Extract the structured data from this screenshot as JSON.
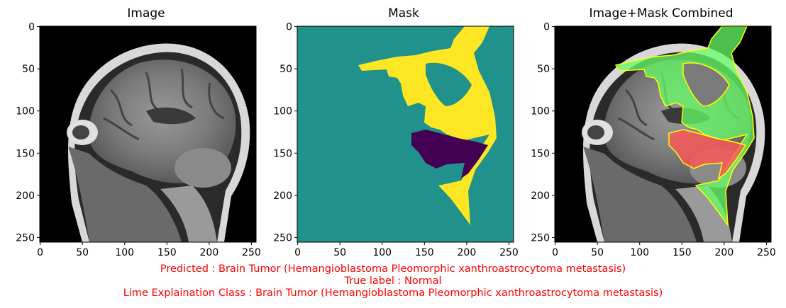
{
  "panels": [
    {
      "title": "Image"
    },
    {
      "title": "Mask"
    },
    {
      "title": "Image+Mask Combined"
    }
  ],
  "axis_ticks": {
    "x": [
      "0",
      "50",
      "100",
      "150",
      "200",
      "250"
    ],
    "y": [
      "0",
      "50",
      "100",
      "150",
      "200",
      "250"
    ]
  },
  "caption": {
    "predicted": "Predicted : Brain Tumor (Hemangioblastoma  Pleomorphic xanthroastrocytoma  metastasis)",
    "true_label": "True label : Normal",
    "lime": "Lime Explaination Class : Brain Tumor (Hemangioblastoma  Pleomorphic xanthroastrocytoma  metastasis)"
  },
  "colors": {
    "caption": "#ff0000",
    "mask_background": "#21918c",
    "mask_positive": "#fde725",
    "mask_negative": "#440154",
    "overlay_positive": "#00ff00",
    "overlay_negative": "#ff0000",
    "boundary": "#ffff00"
  }
}
